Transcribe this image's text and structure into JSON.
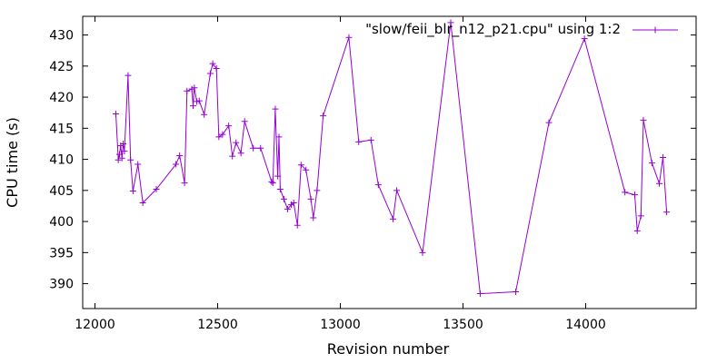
{
  "chart_data": {
    "type": "line",
    "title": "",
    "xlabel": "Revision number",
    "ylabel": "CPU time (s)",
    "xlim": [
      11950,
      14450
    ],
    "ylim": [
      386,
      433
    ],
    "xticks": [
      12000,
      12500,
      13000,
      13500,
      14000
    ],
    "yticks": [
      390,
      395,
      400,
      405,
      410,
      415,
      420,
      425,
      430
    ],
    "grid": false,
    "legend_position": "top-right",
    "series": [
      {
        "name": "\"slow/feii_blr_n12_p21.cpu\" using 1:2",
        "color": "#9400d3",
        "marker": "plus",
        "points": [
          [
            12085,
            417.3
          ],
          [
            12095,
            409.9
          ],
          [
            12100,
            410.8
          ],
          [
            12105,
            412.2
          ],
          [
            12110,
            410.2
          ],
          [
            12115,
            412.5
          ],
          [
            12120,
            411.3
          ],
          [
            12135,
            423.5
          ],
          [
            12145,
            409.9
          ],
          [
            12155,
            404.9
          ],
          [
            12175,
            409.2
          ],
          [
            12195,
            403.0
          ],
          [
            12250,
            405.2
          ],
          [
            12330,
            409.2
          ],
          [
            12345,
            410.6
          ],
          [
            12365,
            406.2
          ],
          [
            12375,
            421.0
          ],
          [
            12395,
            421.3
          ],
          [
            12400,
            418.6
          ],
          [
            12405,
            421.5
          ],
          [
            12415,
            419.3
          ],
          [
            12425,
            419.4
          ],
          [
            12445,
            417.2
          ],
          [
            12470,
            423.8
          ],
          [
            12480,
            425.4
          ],
          [
            12495,
            424.6
          ],
          [
            12505,
            413.6
          ],
          [
            12520,
            414.0
          ],
          [
            12545,
            415.4
          ],
          [
            12560,
            410.5
          ],
          [
            12575,
            412.7
          ],
          [
            12595,
            411.0
          ],
          [
            12610,
            416.1
          ],
          [
            12645,
            411.8
          ],
          [
            12675,
            411.8
          ],
          [
            12720,
            406.4
          ],
          [
            12725,
            406.2
          ],
          [
            12735,
            418.1
          ],
          [
            12745,
            407.3
          ],
          [
            12750,
            413.6
          ],
          [
            12755,
            405.2
          ],
          [
            12770,
            403.6
          ],
          [
            12785,
            402.0
          ],
          [
            12800,
            402.7
          ],
          [
            12810,
            403.0
          ],
          [
            12825,
            399.4
          ],
          [
            12840,
            409.1
          ],
          [
            12860,
            408.3
          ],
          [
            12880,
            403.6
          ],
          [
            12890,
            400.6
          ],
          [
            12905,
            405.0
          ],
          [
            12930,
            417.0
          ],
          [
            13035,
            429.6
          ],
          [
            13075,
            412.8
          ],
          [
            13125,
            413.1
          ],
          [
            13155,
            405.9
          ],
          [
            13215,
            400.4
          ],
          [
            13230,
            405.0
          ],
          [
            13335,
            395.0
          ],
          [
            13450,
            432.0
          ],
          [
            13570,
            388.4
          ],
          [
            13715,
            388.7
          ],
          [
            13850,
            415.9
          ],
          [
            13995,
            429.4
          ],
          [
            14160,
            404.7
          ],
          [
            14200,
            404.3
          ],
          [
            14210,
            398.5
          ],
          [
            14225,
            400.9
          ],
          [
            14235,
            416.3
          ],
          [
            14270,
            409.4
          ],
          [
            14300,
            406.1
          ],
          [
            14315,
            410.3
          ],
          [
            14330,
            401.5
          ]
        ]
      }
    ]
  }
}
